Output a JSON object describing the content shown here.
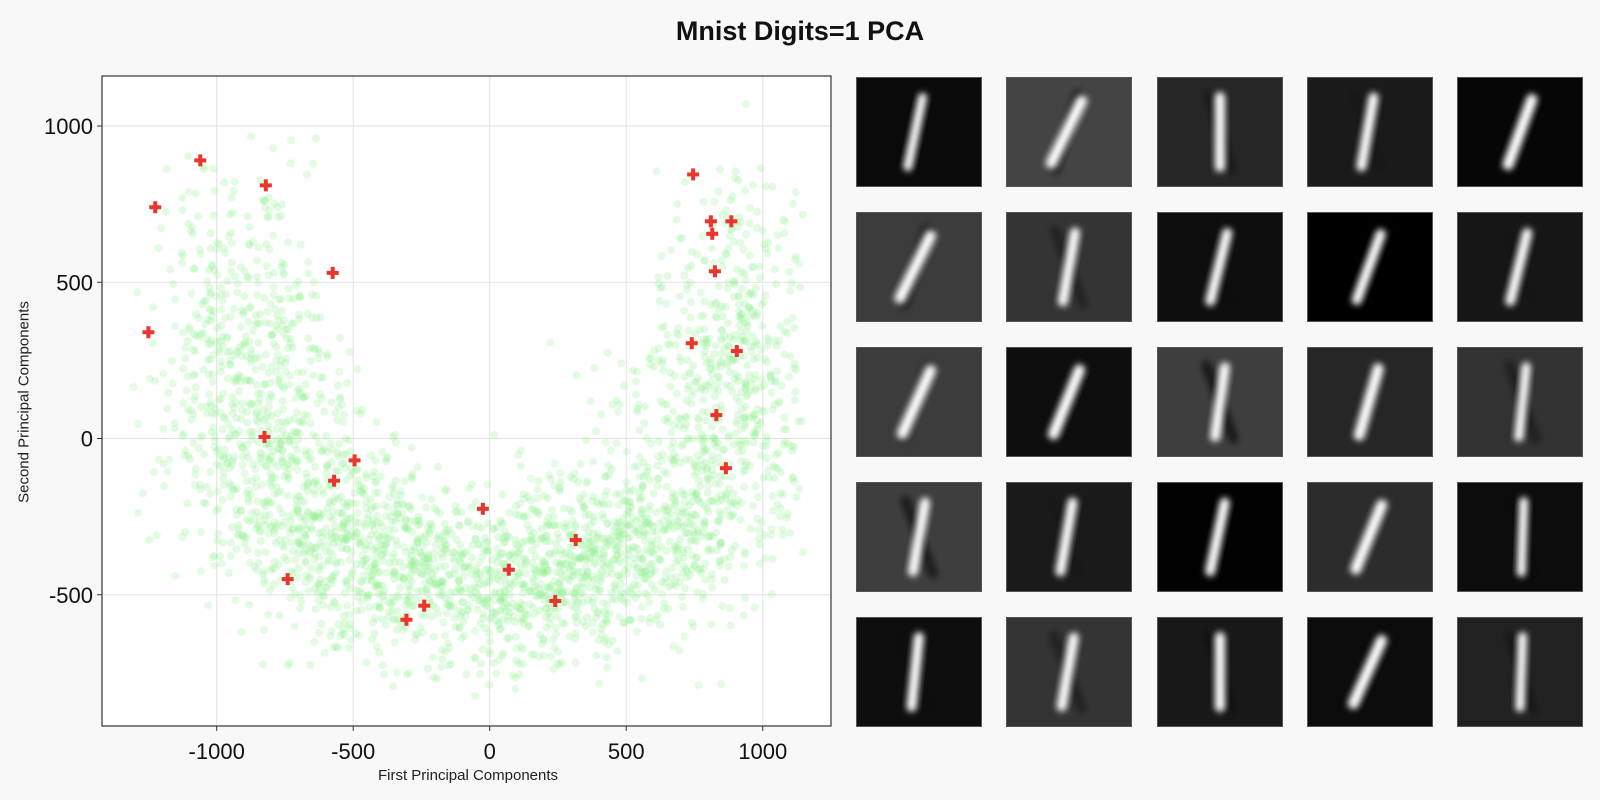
{
  "chart_data": {
    "type": "scatter",
    "title": "Mnist Digits=1 PCA",
    "xlabel": "First Principal  Components",
    "ylabel": "Second Principal  Components",
    "xlim": [
      -1420,
      1250
    ],
    "ylim": [
      -920,
      1160
    ],
    "xticks": [
      -1000,
      -500,
      0,
      500,
      1000
    ],
    "xtick_labels": [
      "-1000",
      "-500",
      "0",
      "500",
      "1000"
    ],
    "yticks": [
      -500,
      0,
      500,
      1000
    ],
    "ytick_labels": [
      "-500",
      "0",
      "500",
      "1000"
    ],
    "grid": true,
    "series": [
      {
        "marker": "circle",
        "color": "#90ee90",
        "alpha": 0.25,
        "approx_count": 6700,
        "shape": "U-shaped point cloud"
      },
      {
        "marker": "cross",
        "color": "#e8362c",
        "points": [
          [
            -1060,
            890
          ],
          [
            -820,
            810
          ],
          [
            -1225,
            740
          ],
          [
            -575,
            530
          ],
          [
            -1250,
            340
          ],
          [
            745,
            845
          ],
          [
            810,
            695
          ],
          [
            885,
            695
          ],
          [
            815,
            655
          ],
          [
            825,
            535
          ],
          [
            740,
            305
          ],
          [
            905,
            280
          ],
          [
            830,
            75
          ],
          [
            -825,
            5
          ],
          [
            865,
            -95
          ],
          [
            -495,
            -70
          ],
          [
            -570,
            -135
          ],
          [
            -25,
            -225
          ],
          [
            315,
            -325
          ],
          [
            70,
            -420
          ],
          [
            -740,
            -450
          ],
          [
            240,
            -520
          ],
          [
            -240,
            -535
          ],
          [
            -305,
            -580
          ]
        ]
      }
    ]
  },
  "thumbnails": {
    "rows": 5,
    "cols": 5,
    "items": [
      {
        "bg": 10,
        "cx": 0.47,
        "tilt": 12,
        "thick": 9,
        "ghost": 0.0
      },
      {
        "bg": 68,
        "cx": 0.48,
        "tilt": 26,
        "thick": 11,
        "ghost": 0.55
      },
      {
        "bg": 38,
        "cx": 0.5,
        "tilt": 0,
        "thick": 10,
        "ghost": 0.3
      },
      {
        "bg": 26,
        "cx": 0.48,
        "tilt": 10,
        "thick": 10,
        "ghost": 0.1
      },
      {
        "bg": 6,
        "cx": 0.5,
        "tilt": 20,
        "thick": 11,
        "ghost": 0.0
      },
      {
        "bg": 60,
        "cx": 0.47,
        "tilt": 26,
        "thick": 11,
        "ghost": 0.5
      },
      {
        "bg": 52,
        "cx": 0.5,
        "tilt": 10,
        "thick": 10,
        "ghost": 0.35
      },
      {
        "bg": 14,
        "cx": 0.49,
        "tilt": 14,
        "thick": 10,
        "ghost": 0.05
      },
      {
        "bg": 0,
        "cx": 0.49,
        "tilt": 20,
        "thick": 10,
        "ghost": 0.0
      },
      {
        "bg": 22,
        "cx": 0.49,
        "tilt": 14,
        "thick": 10,
        "ghost": 0.05
      },
      {
        "bg": 60,
        "cx": 0.48,
        "tilt": 24,
        "thick": 11,
        "ghost": 0.25
      },
      {
        "bg": 14,
        "cx": 0.48,
        "tilt": 22,
        "thick": 11,
        "ghost": 0.05
      },
      {
        "bg": 62,
        "cx": 0.5,
        "tilt": 8,
        "thick": 10,
        "ghost": 0.6
      },
      {
        "bg": 38,
        "cx": 0.49,
        "tilt": 16,
        "thick": 11,
        "ghost": 0.15
      },
      {
        "bg": 50,
        "cx": 0.52,
        "tilt": 6,
        "thick": 9,
        "ghost": 0.4
      },
      {
        "bg": 62,
        "cx": 0.5,
        "tilt": 10,
        "thick": 10,
        "ghost": 0.55
      },
      {
        "bg": 26,
        "cx": 0.48,
        "tilt": 10,
        "thick": 10,
        "ghost": 0.1
      },
      {
        "bg": 2,
        "cx": 0.48,
        "tilt": 12,
        "thick": 10,
        "ghost": 0.0
      },
      {
        "bg": 44,
        "cx": 0.49,
        "tilt": 22,
        "thick": 11,
        "ghost": 0.15
      },
      {
        "bg": 12,
        "cx": 0.52,
        "tilt": 2,
        "thick": 9,
        "ghost": 0.15
      },
      {
        "bg": 14,
        "cx": 0.47,
        "tilt": 6,
        "thick": 10,
        "ghost": 0.1
      },
      {
        "bg": 52,
        "cx": 0.49,
        "tilt": 10,
        "thick": 10,
        "ghost": 0.35
      },
      {
        "bg": 24,
        "cx": 0.5,
        "tilt": 0,
        "thick": 10,
        "ghost": 0.3
      },
      {
        "bg": 12,
        "cx": 0.48,
        "tilt": 24,
        "thick": 11,
        "ghost": 0.45
      },
      {
        "bg": 34,
        "cx": 0.51,
        "tilt": 2,
        "thick": 9,
        "ghost": 0.3
      }
    ]
  }
}
